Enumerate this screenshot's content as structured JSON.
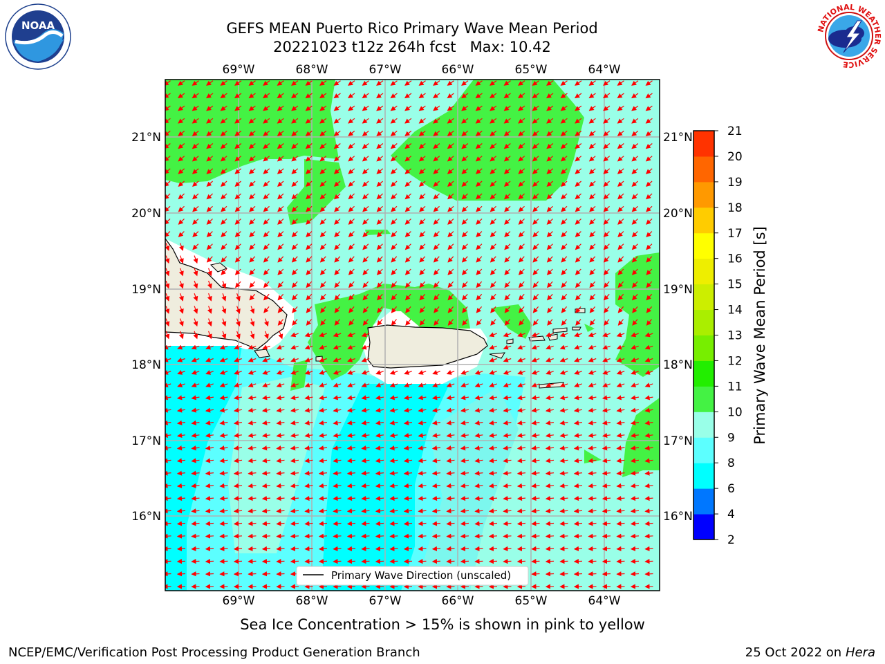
{
  "title": {
    "line1": "GEFS MEAN Puerto Rico Primary Wave Mean Period",
    "line2": "20221023 t12z 264h fcst   Max: 10.42"
  },
  "logos": {
    "left": {
      "icon": "noaa-logo-icon",
      "text": "NOAA"
    },
    "right": {
      "icon": "nws-logo-icon",
      "ring_text": "NATIONAL WEATHER SERVICE"
    }
  },
  "map": {
    "longitude_labels": [
      "69°W",
      "68°W",
      "67°W",
      "66°W",
      "65°W",
      "64°W"
    ],
    "latitude_labels": [
      "21°N",
      "20°N",
      "19°N",
      "18°N",
      "17°N",
      "16°N"
    ],
    "legend_label": "Primary Wave Direction (unscaled)",
    "arrow_color": "#ff0000"
  },
  "colorbar": {
    "label": "Primary Wave Mean Period [s]",
    "ticks": [
      "2",
      "4",
      "6",
      "8",
      "9",
      "10",
      "11",
      "12",
      "13",
      "14",
      "15",
      "16",
      "17",
      "18",
      "19",
      "20",
      "21"
    ],
    "colors": [
      "#0000ff",
      "#0077ff",
      "#00ffff",
      "#5cffff",
      "#99ffe8",
      "#44f244",
      "#22ee00",
      "#77ee00",
      "#aaee00",
      "#ccee00",
      "#eeee00",
      "#ffff00",
      "#ffcc00",
      "#ff9900",
      "#ff6600",
      "#ff3300",
      "#ff0000"
    ]
  },
  "subnote": "Sea Ice Concentration > 15% is shown in pink to yellow",
  "footer": {
    "left": "NCEP/EMC/Verification Post Processing Product Generation Branch",
    "right_date": "25 Oct 2022 on ",
    "right_host": "Hera"
  }
}
